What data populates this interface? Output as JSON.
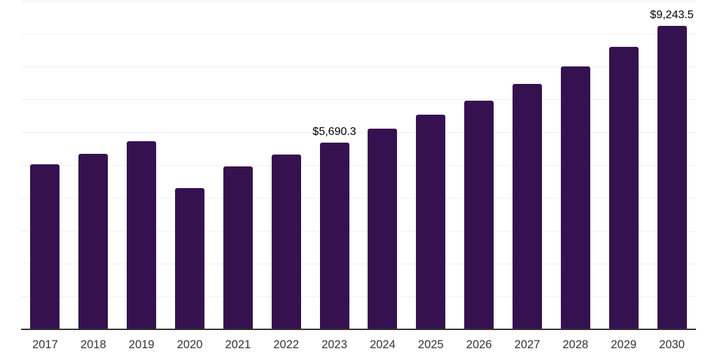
{
  "chart_data": {
    "type": "bar",
    "title": "",
    "xlabel": "",
    "ylabel": "",
    "categories": [
      "2017",
      "2018",
      "2019",
      "2020",
      "2021",
      "2022",
      "2023",
      "2024",
      "2025",
      "2026",
      "2027",
      "2028",
      "2029",
      "2030"
    ],
    "values": [
      5030,
      5335,
      5730,
      4305,
      4965,
      5320,
      5690.3,
      6100,
      6530,
      6950,
      7470,
      7990,
      8600,
      9243.5
    ],
    "annotations": [
      {
        "index": 6,
        "text": "$5,690.3"
      },
      {
        "index": 13,
        "text": "$9,243.5"
      }
    ],
    "ylim": [
      0,
      10000
    ],
    "gridline_step": 1000,
    "grid": true,
    "legend": false,
    "colors": {
      "bar": "#361150",
      "grid": "#F0F0F0",
      "axis_line": "#333333",
      "tick_label": "#333333",
      "data_label": "#000000",
      "background": "#FFFFFF"
    }
  }
}
